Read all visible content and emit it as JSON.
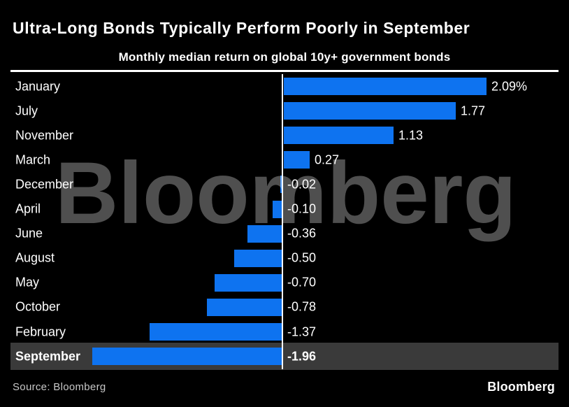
{
  "title": "Ultra-Long Bonds Typically Perform Poorly in September",
  "subtitle": "Monthly median return on global 10y+ government bonds",
  "watermark": "Bloomberg",
  "footer": {
    "source": "Source: Bloomberg",
    "logo": "Bloomberg"
  },
  "colors": {
    "background": "#000000",
    "bar": "#0E73F0",
    "highlight_band": "#3A3A3A",
    "text": "#FFFFFF",
    "source_text": "#C8C8C8"
  },
  "chart_data": {
    "type": "bar",
    "orientation": "horizontal",
    "title": "Ultra-Long Bonds Typically Perform Poorly in September",
    "subtitle": "Monthly median return on global 10y+ government bonds",
    "units": "percent",
    "categories": [
      "January",
      "July",
      "November",
      "March",
      "December",
      "April",
      "June",
      "August",
      "May",
      "October",
      "February",
      "September"
    ],
    "values": [
      2.09,
      1.77,
      1.13,
      0.27,
      -0.02,
      -0.1,
      -0.36,
      -0.5,
      -0.7,
      -0.78,
      -1.37,
      -1.96
    ],
    "value_labels": [
      "2.09%",
      "1.77",
      "1.13",
      "0.27",
      "-0.02",
      "-0.10",
      "-0.36",
      "-0.50",
      "-0.70",
      "-0.78",
      "-1.37",
      "-1.96"
    ],
    "highlighted_category": "September",
    "xlim": [
      -2.8,
      2.85
    ],
    "grid": false,
    "legend": false,
    "zero_line": true,
    "sort": "descending"
  }
}
